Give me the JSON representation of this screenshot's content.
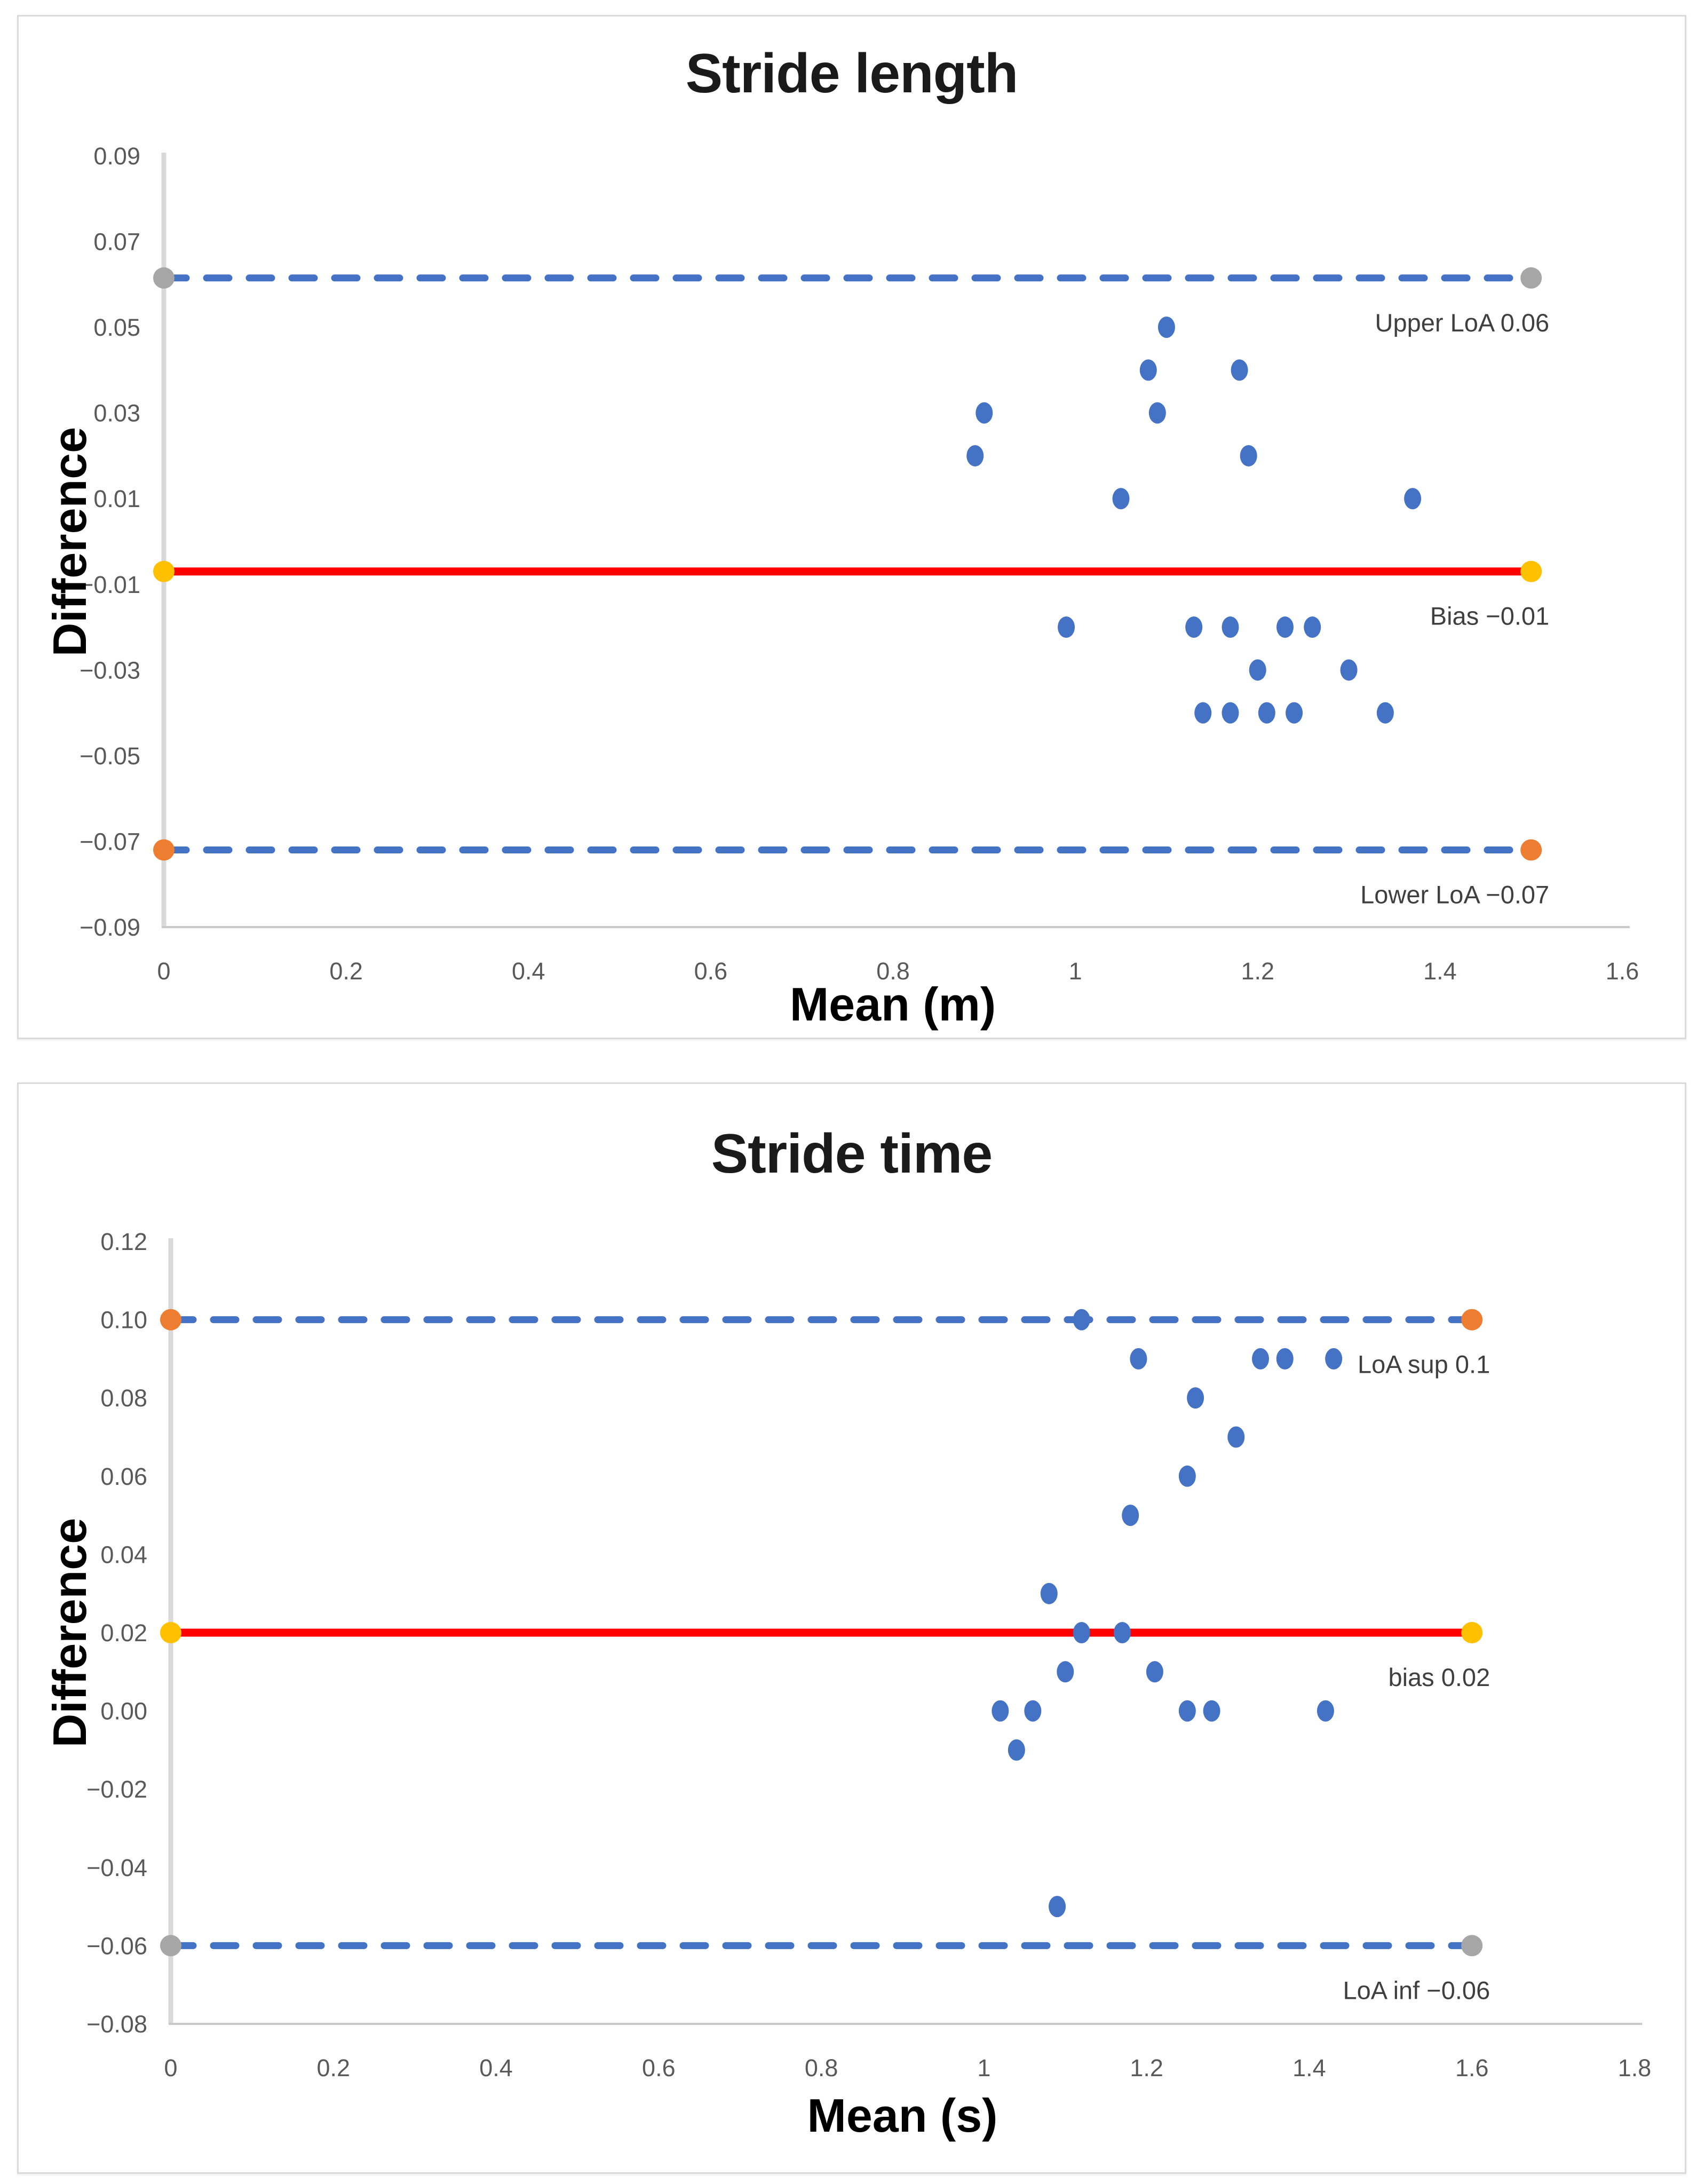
{
  "page": {
    "background": "#ffffff",
    "panel_border": "#dadada"
  },
  "chart_data": [
    {
      "type": "scatter",
      "title": "Stride length",
      "xlabel": "Mean (m)",
      "ylabel": "Difference",
      "xlim": [
        0,
        1.6
      ],
      "ylim": [
        -0.09,
        0.09
      ],
      "grid": "off",
      "point_color": "#4472C4",
      "axis_color": "#d9d9d9",
      "tick_label_color": "#595959",
      "annotation_color": "#3f3f3f",
      "x_ticks": [
        {
          "v": 0,
          "label": "0"
        },
        {
          "v": 0.2,
          "label": "0.2"
        },
        {
          "v": 0.4,
          "label": "0.4"
        },
        {
          "v": 0.6,
          "label": "0.6"
        },
        {
          "v": 0.8,
          "label": "0.8"
        },
        {
          "v": 1,
          "label": "1"
        },
        {
          "v": 1.2,
          "label": "1.2"
        },
        {
          "v": 1.4,
          "label": "1.4"
        },
        {
          "v": 1.6,
          "label": "1.6"
        }
      ],
      "y_ticks": [
        {
          "v": 0.09,
          "label": "0.09"
        },
        {
          "v": 0.07,
          "label": "0.07"
        },
        {
          "v": 0.05,
          "label": "0.05"
        },
        {
          "v": 0.03,
          "label": "0.03"
        },
        {
          "v": 0.01,
          "label": "0.01"
        },
        {
          "v": -0.01,
          "label": "−0.01"
        },
        {
          "v": -0.03,
          "label": "−0.03"
        },
        {
          "v": -0.05,
          "label": "−0.05"
        },
        {
          "v": -0.07,
          "label": "−0.07"
        },
        {
          "v": -0.09,
          "label": "−0.09"
        }
      ],
      "ref_lines": [
        {
          "y": 0.0615,
          "x0": 0,
          "x1": 1.5,
          "style": "dashed",
          "color": "#4472C4",
          "marker_color": "#A6A6A6",
          "label": "Upper LoA 0.06"
        },
        {
          "y": -0.007,
          "x0": 0,
          "x1": 1.5,
          "style": "solid",
          "color": "#FF0000",
          "marker_color": "#FFC000",
          "label": "Bias −0.01"
        },
        {
          "y": -0.072,
          "x0": 0,
          "x1": 1.5,
          "style": "dashed",
          "color": "#4472C4",
          "marker_color": "#ED7D31",
          "label": "Lower LoA −0.07"
        }
      ],
      "points": [
        [
          1.1,
          0.05
        ],
        [
          1.08,
          0.04
        ],
        [
          1.18,
          0.04
        ],
        [
          0.9,
          0.03
        ],
        [
          1.09,
          0.03
        ],
        [
          0.89,
          0.02
        ],
        [
          1.19,
          0.02
        ],
        [
          1.05,
          0.01
        ],
        [
          1.37,
          0.01
        ],
        [
          0.99,
          -0.02
        ],
        [
          1.13,
          -0.02
        ],
        [
          1.17,
          -0.02
        ],
        [
          1.23,
          -0.02
        ],
        [
          1.26,
          -0.02
        ],
        [
          1.2,
          -0.03
        ],
        [
          1.3,
          -0.03
        ],
        [
          1.14,
          -0.04
        ],
        [
          1.17,
          -0.04
        ],
        [
          1.21,
          -0.04
        ],
        [
          1.24,
          -0.04
        ],
        [
          1.34,
          -0.04
        ]
      ]
    },
    {
      "type": "scatter",
      "title": "Stride time",
      "xlabel": "Mean (s)",
      "ylabel": "Difference",
      "xlim": [
        0,
        1.8
      ],
      "ylim": [
        -0.08,
        0.12
      ],
      "grid": "off",
      "point_color": "#4472C4",
      "axis_color": "#d9d9d9",
      "tick_label_color": "#595959",
      "annotation_color": "#3f3f3f",
      "x_ticks": [
        {
          "v": 0,
          "label": "0"
        },
        {
          "v": 0.2,
          "label": "0.2"
        },
        {
          "v": 0.4,
          "label": "0.4"
        },
        {
          "v": 0.6,
          "label": "0.6"
        },
        {
          "v": 0.8,
          "label": "0.8"
        },
        {
          "v": 1,
          "label": "1"
        },
        {
          "v": 1.2,
          "label": "1.2"
        },
        {
          "v": 1.4,
          "label": "1.4"
        },
        {
          "v": 1.6,
          "label": "1.6"
        },
        {
          "v": 1.8,
          "label": "1.8"
        }
      ],
      "y_ticks": [
        {
          "v": 0.12,
          "label": "0.12"
        },
        {
          "v": 0.1,
          "label": "0.10"
        },
        {
          "v": 0.08,
          "label": "0.08"
        },
        {
          "v": 0.06,
          "label": "0.06"
        },
        {
          "v": 0.04,
          "label": "0.04"
        },
        {
          "v": 0.02,
          "label": "0.02"
        },
        {
          "v": 0.0,
          "label": "0.00"
        },
        {
          "v": -0.02,
          "label": "−0.02"
        },
        {
          "v": -0.04,
          "label": "−0.04"
        },
        {
          "v": -0.06,
          "label": "−0.06"
        },
        {
          "v": -0.08,
          "label": "−0.08"
        }
      ],
      "ref_lines": [
        {
          "y": 0.1,
          "x0": 0,
          "x1": 1.6,
          "style": "dashed",
          "color": "#4472C4",
          "marker_color": "#ED7D31",
          "label": "LoA sup 0.1"
        },
        {
          "y": 0.02,
          "x0": 0,
          "x1": 1.6,
          "style": "solid",
          "color": "#FF0000",
          "marker_color": "#FFC000",
          "label": "bias 0.02"
        },
        {
          "y": -0.06,
          "x0": 0,
          "x1": 1.6,
          "style": "dashed",
          "color": "#4472C4",
          "marker_color": "#A6A6A6",
          "label": "LoA inf −0.06"
        }
      ],
      "points": [
        [
          1.12,
          0.1
        ],
        [
          1.19,
          0.09
        ],
        [
          1.34,
          0.09
        ],
        [
          1.37,
          0.09
        ],
        [
          1.43,
          0.09
        ],
        [
          1.26,
          0.08
        ],
        [
          1.31,
          0.07
        ],
        [
          1.25,
          0.06
        ],
        [
          1.18,
          0.05
        ],
        [
          1.08,
          0.03
        ],
        [
          1.12,
          0.02
        ],
        [
          1.17,
          0.02
        ],
        [
          1.1,
          0.01
        ],
        [
          1.21,
          0.01
        ],
        [
          1.02,
          0.0
        ],
        [
          1.06,
          0.0
        ],
        [
          1.25,
          0.0
        ],
        [
          1.28,
          0.0
        ],
        [
          1.42,
          0.0
        ],
        [
          1.04,
          -0.01
        ],
        [
          1.09,
          -0.05
        ]
      ]
    }
  ]
}
